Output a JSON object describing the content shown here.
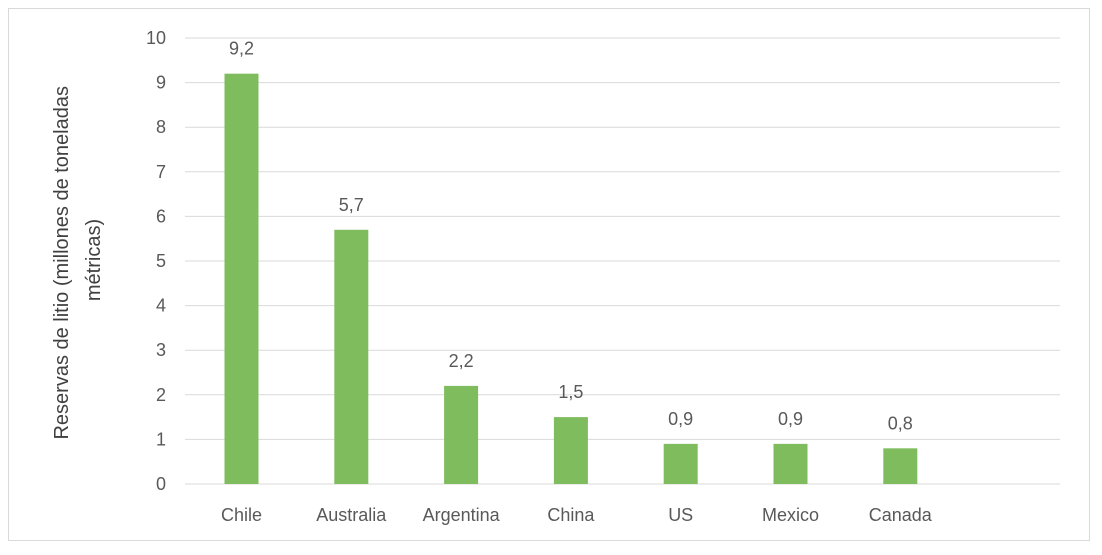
{
  "chart_data": {
    "type": "bar",
    "categories": [
      "Chile",
      "Australia",
      "Argentina",
      "China",
      "US",
      "Mexico",
      "Canada"
    ],
    "values": [
      9.2,
      5.7,
      2.2,
      1.5,
      0.9,
      0.9,
      0.8
    ],
    "data_labels": [
      "9,2",
      "5,7",
      "2,2",
      "1,5",
      "0,9",
      "0,9",
      "0,8"
    ],
    "title": "",
    "xlabel": "",
    "ylabel_lines": [
      "Reservas de litio (millones de toneladas",
      "métricas)"
    ],
    "ylim": [
      0,
      10
    ],
    "yticks": [
      "0",
      "1",
      "2",
      "3",
      "4",
      "5",
      "6",
      "7",
      "8",
      "9",
      "10"
    ],
    "grid": true,
    "legend": "none",
    "colors": {
      "bar": "#7fbc5e",
      "grid": "#d9d9d9",
      "text": "#595959"
    }
  }
}
